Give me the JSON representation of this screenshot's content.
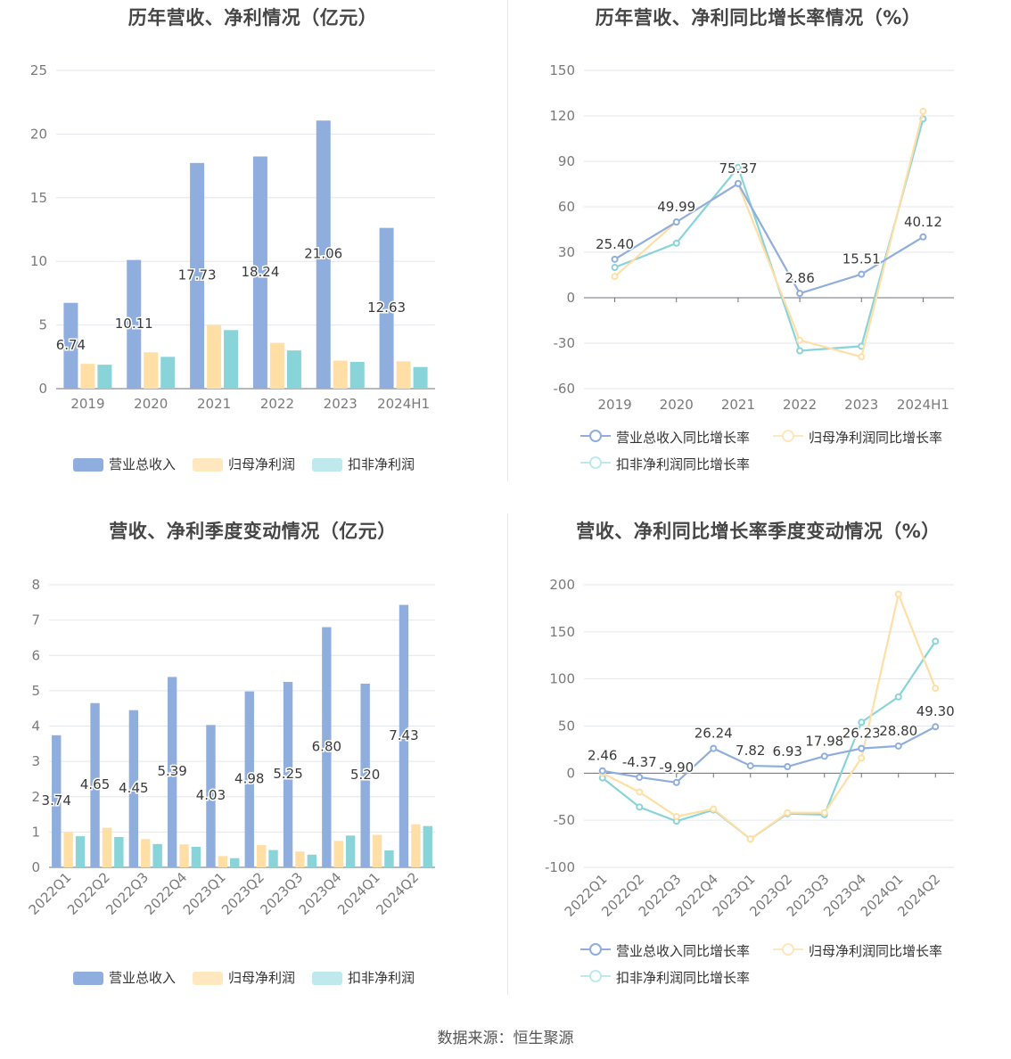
{
  "source_text": "数据来源：恒生聚源",
  "colors": {
    "revenue": "#8faedd",
    "net": "#ffdfa6",
    "deducted": "#88d4d8"
  },
  "chart_data": [
    {
      "type": "bar",
      "title": "历年营收、净利情况（亿元）",
      "categories": [
        "2019",
        "2020",
        "2021",
        "2022",
        "2023",
        "2024H1"
      ],
      "ylim": [
        0,
        25
      ],
      "yticks": [
        "0",
        "5",
        "10",
        "15",
        "20",
        "25"
      ],
      "series": [
        {
          "name": "营业总收入",
          "values": [
            6.74,
            10.11,
            17.73,
            18.24,
            21.06,
            12.63
          ],
          "labels": [
            "6.74",
            "10.11",
            "17.73",
            "18.24",
            "21.06",
            "12.63"
          ]
        },
        {
          "name": "归母净利润",
          "values": [
            1.95,
            2.85,
            5.0,
            3.6,
            2.2,
            2.15
          ]
        },
        {
          "name": "扣非净利润",
          "values": [
            1.88,
            2.5,
            4.6,
            3.0,
            2.1,
            1.7
          ]
        }
      ],
      "legend": "bottom",
      "grid": true
    },
    {
      "type": "line",
      "title": "历年营收、净利同比增长率情况（%）",
      "categories": [
        "2019",
        "2020",
        "2021",
        "2022",
        "2023",
        "2024H1"
      ],
      "ylim": [
        -60,
        150
      ],
      "yticks": [
        "-60",
        "-30",
        "0",
        "30",
        "60",
        "90",
        "120",
        "150"
      ],
      "series": [
        {
          "name": "营业总收入同比增长率",
          "values": [
            25.4,
            49.99,
            75.37,
            2.86,
            15.51,
            40.12
          ],
          "labels": [
            "25.40",
            "49.99",
            "75.37",
            "2.86",
            "15.51",
            "40.12"
          ]
        },
        {
          "name": "归母净利润同比增长率",
          "values": [
            14,
            50,
            75,
            -28,
            -39,
            123
          ]
        },
        {
          "name": "扣非净利润同比增长率",
          "values": [
            20,
            36,
            86,
            -35,
            -32,
            118
          ]
        }
      ],
      "legend": "bottom",
      "grid": true
    },
    {
      "type": "bar",
      "title": "营收、净利季度变动情况（亿元）",
      "categories": [
        "2022Q1",
        "2022Q2",
        "2022Q3",
        "2022Q4",
        "2023Q1",
        "2023Q2",
        "2023Q3",
        "2023Q4",
        "2024Q1",
        "2024Q2"
      ],
      "ylim": [
        0,
        8
      ],
      "yticks": [
        "0",
        "1",
        "2",
        "3",
        "4",
        "5",
        "6",
        "7",
        "8"
      ],
      "series": [
        {
          "name": "营业总收入",
          "values": [
            3.74,
            4.65,
            4.45,
            5.39,
            4.03,
            4.98,
            5.25,
            6.8,
            5.2,
            7.43
          ],
          "labels": [
            "3.74",
            "4.65",
            "4.45",
            "5.39",
            "4.03",
            "4.98",
            "5.25",
            "6.80",
            "5.20",
            "7.43"
          ]
        },
        {
          "name": "归母净利润",
          "values": [
            1.0,
            1.12,
            0.8,
            0.65,
            0.32,
            0.63,
            0.45,
            0.75,
            0.92,
            1.22
          ]
        },
        {
          "name": "扣非净利润",
          "values": [
            0.88,
            0.86,
            0.66,
            0.58,
            0.26,
            0.49,
            0.36,
            0.9,
            0.48,
            1.17
          ]
        }
      ],
      "legend": "bottom",
      "grid": true
    },
    {
      "type": "line",
      "title": "营收、净利同比增长率季度变动情况（%）",
      "categories": [
        "2022Q1",
        "2022Q2",
        "2022Q3",
        "2022Q4",
        "2023Q1",
        "2023Q2",
        "2023Q3",
        "2023Q4",
        "2024Q1",
        "2024Q2"
      ],
      "ylim": [
        -100,
        200
      ],
      "yticks": [
        "-100",
        "-50",
        "0",
        "50",
        "100",
        "150",
        "200"
      ],
      "series": [
        {
          "name": "营业总收入同比增长率",
          "values": [
            2.46,
            -4.37,
            -9.9,
            26.24,
            7.82,
            6.93,
            17.98,
            26.23,
            28.8,
            49.3
          ],
          "labels": [
            "2.46",
            "-4.37",
            "-9.90",
            "26.24",
            "7.82",
            "6.93",
            "17.98",
            "26.23",
            "28.80",
            "49.30"
          ]
        },
        {
          "name": "归母净利润同比增长率",
          "values": [
            0,
            -20,
            -46,
            -38,
            -70,
            -42,
            -42,
            16,
            190,
            90
          ]
        },
        {
          "name": "扣非净利润同比增长率",
          "values": [
            -5,
            -36,
            -51,
            -39,
            -70,
            -43,
            -44,
            54,
            81,
            140
          ]
        }
      ],
      "legend": "bottom",
      "grid": true
    }
  ]
}
